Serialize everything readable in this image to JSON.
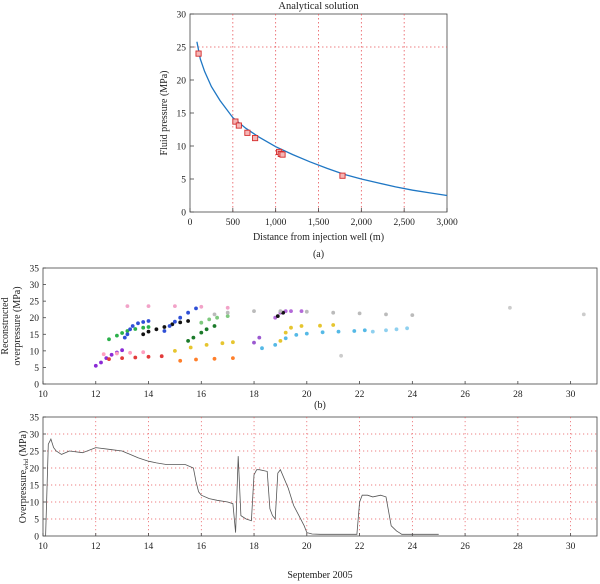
{
  "chart_data": [
    {
      "type": "line",
      "title": "Analytical solution",
      "xlabel": "Distance from injection well (m)",
      "ylabel": "Fluid pressure (MPa)",
      "panel_label": "(a)",
      "xlim": [
        0,
        3000
      ],
      "ylim": [
        0,
        30
      ],
      "xticks": [
        0,
        500,
        "1,000",
        "1,500",
        "2,000",
        "2,500",
        "3,000"
      ],
      "xtick_values": [
        0,
        500,
        1000,
        1500,
        2000,
        2500,
        3000
      ],
      "yticks": [
        0,
        5,
        10,
        15,
        20,
        25,
        30
      ],
      "grid": "red dotted",
      "reference_lines": {
        "y": 25,
        "x_values": [
          500,
          1000,
          1500,
          2000,
          2500
        ]
      },
      "series": [
        {
          "curve": true,
          "x": [
            80,
            120,
            170,
            250,
            350,
            500,
            650,
            800,
            1000,
            1200,
            1400,
            1600,
            1800,
            2000,
            2200,
            2400,
            2600,
            2800,
            3000
          ],
          "y": [
            25.8,
            23.2,
            21.3,
            19.0,
            16.9,
            14.3,
            12.7,
            11.4,
            9.9,
            8.7,
            7.6,
            6.6,
            5.7,
            5.0,
            4.4,
            3.8,
            3.3,
            2.9,
            2.5
          ]
        },
        {
          "markers": "square",
          "x": [
            100,
            530,
            570,
            670,
            760,
            1040,
            1060,
            1080,
            1780
          ],
          "y": [
            24.0,
            13.7,
            13.1,
            12.0,
            11.2,
            9.1,
            8.8,
            8.7,
            5.5
          ]
        }
      ]
    },
    {
      "type": "scatter",
      "ylabel_line1": "Reconstructed",
      "ylabel_line2": "overpressure (MPa)",
      "panel_label": "(b)",
      "xlim": [
        10,
        31
      ],
      "ylim": [
        0,
        35
      ],
      "xticks": [
        10,
        12,
        14,
        16,
        18,
        20,
        22,
        24,
        26,
        28,
        30
      ],
      "yticks": [
        0,
        5,
        10,
        15,
        20,
        25,
        30,
        35
      ],
      "series": [
        {
          "color": "#8b2bd6",
          "x": [
            12.0,
            12.2,
            12.4,
            12.6,
            12.8,
            13.0
          ],
          "y": [
            5.5,
            6.5,
            7.8,
            8.8,
            9.5,
            10.2
          ]
        },
        {
          "color": "#2bb04a",
          "x": [
            12.5,
            12.8,
            13.0,
            13.2,
            13.5,
            13.8,
            14.0
          ],
          "y": [
            13.5,
            14.6,
            15.4,
            16.0,
            16.6,
            17.0,
            17.2
          ]
        },
        {
          "color": "#e23a3a",
          "x": [
            12.5,
            13.0,
            13.5,
            14.0,
            14.5
          ],
          "y": [
            7.5,
            7.8,
            8.0,
            8.2,
            8.4
          ]
        },
        {
          "color": "#2f4fd6",
          "x": [
            13.1,
            13.2,
            13.3,
            13.4,
            13.6,
            13.8,
            14.0
          ],
          "y": [
            14.0,
            15.0,
            16.5,
            17.5,
            18.3,
            18.7,
            19.0
          ]
        },
        {
          "color": "#111111",
          "x": [
            13.8,
            14.0,
            14.3,
            14.6,
            14.9,
            15.2,
            15.5
          ],
          "y": [
            15.0,
            15.8,
            16.5,
            17.2,
            18.0,
            18.6,
            19.0
          ]
        },
        {
          "color": "#2f4fd6",
          "x": [
            14.6,
            14.8,
            15.0,
            15.2,
            15.5,
            15.8
          ],
          "y": [
            16.0,
            17.5,
            18.8,
            20.0,
            21.5,
            22.8
          ]
        },
        {
          "color": "#1b7a2a",
          "x": [
            15.5,
            15.7,
            16.0,
            16.2,
            16.5
          ],
          "y": [
            13.0,
            14.0,
            15.5,
            16.5,
            17.5
          ]
        },
        {
          "color": "#7ec97e",
          "x": [
            16.0,
            16.3,
            16.6,
            17.0
          ],
          "y": [
            18.5,
            19.5,
            20.0,
            20.5
          ]
        },
        {
          "color": "#e6c52f",
          "x": [
            15.0,
            15.6,
            16.2,
            16.8,
            17.2
          ],
          "y": [
            10.0,
            11.0,
            11.8,
            12.3,
            12.6
          ]
        },
        {
          "color": "#ff7f2a",
          "x": [
            15.2,
            15.8,
            16.5,
            17.2
          ],
          "y": [
            7.0,
            7.4,
            7.6,
            7.8
          ]
        },
        {
          "color": "#9b59d0",
          "x": [
            18.0,
            18.2
          ],
          "y": [
            12.5,
            14.0
          ]
        },
        {
          "color": "#55b9e6",
          "x": [
            18.3,
            18.8,
            19.2,
            19.6,
            20.0,
            20.6,
            21.2,
            21.8,
            22.2
          ],
          "y": [
            10.8,
            11.8,
            13.8,
            14.8,
            15.2,
            15.6,
            15.8,
            16.0,
            16.2
          ]
        },
        {
          "color": "#e6c52f",
          "x": [
            19.0,
            19.2,
            19.4,
            19.8,
            20.5,
            21.0
          ],
          "y": [
            13.0,
            15.5,
            17.0,
            17.5,
            17.6,
            17.8
          ]
        },
        {
          "color": "#b36ad8",
          "x": [
            18.8,
            19.0,
            19.2,
            19.4,
            19.8
          ],
          "y": [
            20.0,
            21.5,
            22.0,
            22.0,
            22.0
          ]
        },
        {
          "color": "#111111",
          "x": [
            18.9,
            19.1
          ],
          "y": [
            20.5,
            21.5
          ]
        },
        {
          "color": "#8fd0ef",
          "x": [
            22.5,
            23.0,
            23.4,
            23.8
          ],
          "y": [
            15.8,
            16.2,
            16.5,
            16.8
          ]
        },
        {
          "color": "#bbbbbb",
          "x": [
            16.5,
            17.0,
            18.0,
            19.0,
            20.0,
            21.0,
            22.0,
            23.0,
            24.0
          ],
          "y": [
            21.0,
            21.5,
            22.0,
            22.0,
            21.8,
            21.5,
            21.3,
            21.0,
            20.8
          ]
        },
        {
          "color": "#f2a3c8",
          "x": [
            13.2,
            14.0,
            15.0,
            16.0,
            17.0
          ],
          "y": [
            23.5,
            23.5,
            23.5,
            23.3,
            23.0
          ]
        },
        {
          "color": "#ff9fc0",
          "x": [
            12.3,
            12.8,
            13.3,
            13.8
          ],
          "y": [
            9.0,
            9.2,
            9.4,
            9.6
          ]
        },
        {
          "color": "#cccccc",
          "x": [
            21.3,
            27.7,
            30.5
          ],
          "y": [
            8.5,
            23.0,
            21.0
          ]
        }
      ]
    },
    {
      "type": "line",
      "ylabel": "Overpressure",
      "ylabel_subscript": "whd",
      "ylabel_unit": " (MPa)",
      "xlabel": "September 2005",
      "xlim": [
        10,
        31
      ],
      "ylim": [
        0,
        35
      ],
      "xticks": [
        10,
        12,
        14,
        16,
        18,
        20,
        22,
        24,
        26,
        28,
        30
      ],
      "yticks": [
        0,
        5,
        10,
        15,
        20,
        25,
        30,
        35
      ],
      "grid": "red dotted",
      "series": [
        {
          "x": [
            10.0,
            10.1,
            10.2,
            10.3,
            10.4,
            10.5,
            10.7,
            11.0,
            11.5,
            12.0,
            12.5,
            13.0,
            13.3,
            13.6,
            13.8,
            14.0,
            14.3,
            14.7,
            15.0,
            15.4,
            15.7,
            15.8,
            15.9,
            16.0,
            16.3,
            16.6,
            17.0,
            17.2,
            17.3,
            17.4,
            17.5,
            17.7,
            17.9,
            18.0,
            18.1,
            18.2,
            18.5,
            18.6,
            18.7,
            18.8,
            18.9,
            19.0,
            19.3,
            19.5,
            19.7,
            19.9,
            20.0,
            20.2,
            20.5,
            21.0,
            21.5,
            21.9,
            22.0,
            22.1,
            22.3,
            22.5,
            22.8,
            23.0,
            23.2,
            23.4,
            23.5,
            23.6,
            24.0,
            24.5,
            25.0
          ],
          "y": [
            0,
            0,
            27.0,
            28.5,
            26.0,
            25.0,
            24.0,
            25.0,
            24.5,
            26.0,
            25.5,
            25.0,
            24.0,
            23.0,
            22.5,
            22.0,
            21.5,
            21.0,
            21.0,
            21.0,
            20.0,
            16.0,
            13.0,
            12.0,
            11.0,
            10.5,
            10.0,
            9.5,
            1.0,
            23.5,
            6.0,
            5.0,
            4.5,
            18.0,
            19.5,
            19.5,
            19.0,
            8.0,
            6.0,
            5.0,
            18.5,
            19.5,
            14.0,
            9.0,
            6.0,
            3.0,
            1.0,
            0.6,
            0.5,
            0.5,
            0.5,
            0.5,
            10.0,
            12.0,
            12.0,
            11.5,
            12.0,
            11.5,
            3.0,
            1.5,
            1.0,
            0.5,
            0.5,
            0.5,
            0.5
          ]
        }
      ]
    }
  ]
}
